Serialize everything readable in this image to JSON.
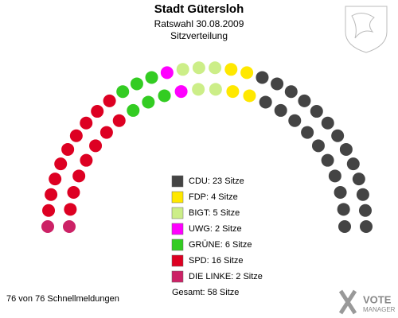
{
  "chart_data": {
    "type": "parliament",
    "title": "Stadt Gütersloh",
    "subtitle": [
      "Ratswahl 30.08.2009",
      "Sitzverteilung"
    ],
    "values": [
      23,
      4,
      5,
      2,
      6,
      16,
      2
    ],
    "value_labels": [
      "CDU: 23 Sitze",
      "FDP: 4 Sitze",
      "BIGT: 5 Sitze",
      "UWG: 2 Sitze",
      "GRÜNE: 6 Sitze",
      "SPD: 16 Sitze",
      "DIE LINKE: 2 Sitze"
    ],
    "colors": [
      "#444444",
      "#ffe800",
      "#ccee88",
      "#ff00ff",
      "#33cc22",
      "#dd0022",
      "#cc2266"
    ],
    "total": {
      "value": 58,
      "label": "Gesamt: 58 Sitze"
    },
    "footer": "76 von 76 Schnellmeldungen",
    "logo": [
      "VOTE",
      "MANAGER"
    ]
  }
}
